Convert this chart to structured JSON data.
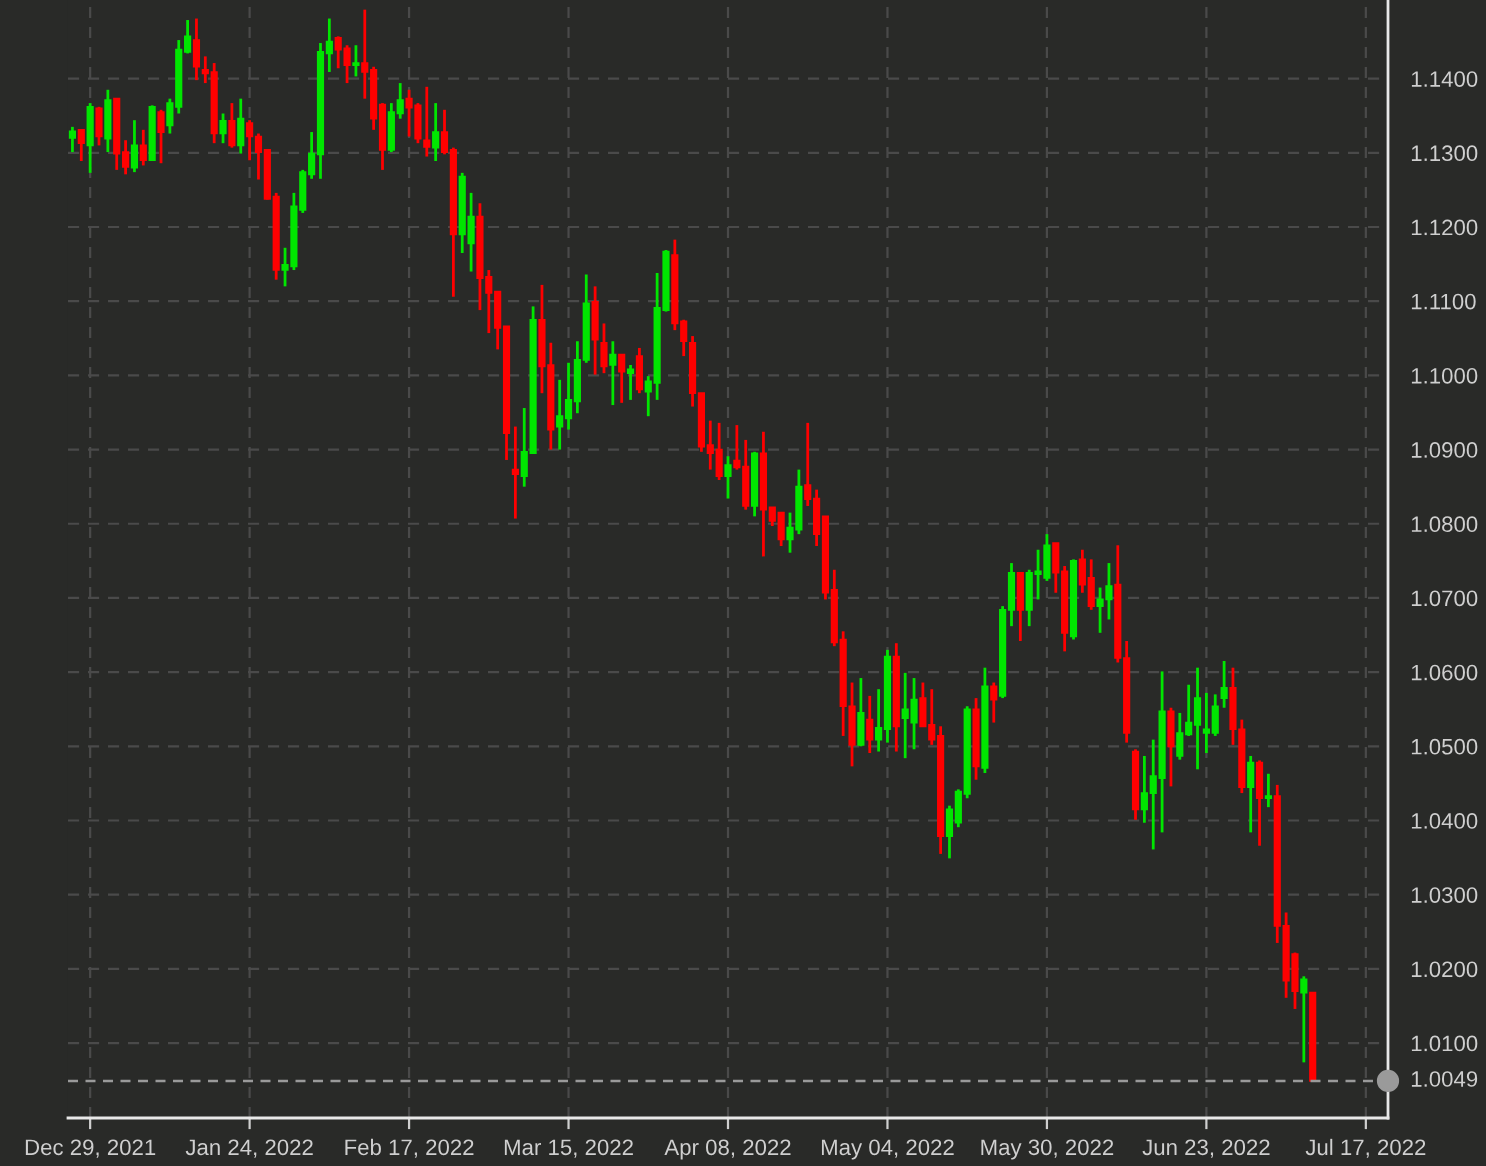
{
  "chart_data": {
    "type": "candlestick",
    "categories": [
      null,
      null,
      "Dec 29, 2021",
      null,
      null,
      null,
      null,
      null,
      null,
      null,
      null,
      null,
      null,
      null,
      null,
      null,
      null,
      null,
      null,
      null,
      "Jan 24, 2022",
      null,
      null,
      null,
      null,
      null,
      null,
      null,
      null,
      null,
      null,
      null,
      null,
      null,
      null,
      null,
      null,
      null,
      "Feb 17, 2022",
      null,
      null,
      null,
      null,
      null,
      null,
      null,
      null,
      null,
      null,
      null,
      null,
      null,
      null,
      null,
      null,
      null,
      "Mar 15, 2022",
      null,
      null,
      null,
      null,
      null,
      null,
      null,
      null,
      null,
      null,
      null,
      null,
      null,
      null,
      null,
      null,
      null,
      "Apr 08, 2022",
      null,
      null,
      null,
      null,
      null,
      null,
      null,
      null,
      null,
      null,
      null,
      null,
      null,
      null,
      null,
      null,
      null,
      "May 04, 2022",
      null,
      null,
      null,
      null,
      null,
      null,
      null,
      null,
      null,
      null,
      null,
      null,
      null,
      null,
      null,
      null,
      null,
      "May 30, 2022",
      null,
      null,
      null,
      null,
      null,
      null,
      null,
      null,
      null,
      null,
      null,
      null,
      null,
      null,
      null,
      null,
      null,
      "Jun 23, 2022",
      null,
      null,
      null,
      null,
      null,
      null,
      null,
      null,
      null,
      null,
      null,
      null,
      null,
      null,
      null,
      null,
      null,
      "Jul 17, 2022"
    ],
    "ohlc": [
      [
        1.132,
        1.1335,
        1.1301,
        1.1329
      ],
      [
        1.1331,
        1.1331,
        1.1289,
        1.1313
      ],
      [
        1.131,
        1.1367,
        1.1273,
        1.1362
      ],
      [
        1.136,
        1.1362,
        1.131,
        1.1322
      ],
      [
        1.1319,
        1.1385,
        1.1301,
        1.1371
      ],
      [
        1.1373,
        1.1373,
        1.1277,
        1.1299
      ],
      [
        1.1301,
        1.1317,
        1.1271,
        1.1281
      ],
      [
        1.128,
        1.1344,
        1.1274,
        1.131
      ],
      [
        1.131,
        1.1331,
        1.1283,
        1.129
      ],
      [
        1.129,
        1.1364,
        1.1289,
        1.1362
      ],
      [
        1.1355,
        1.1358,
        1.1286,
        1.1328
      ],
      [
        1.1337,
        1.1373,
        1.1326,
        1.1367
      ],
      [
        1.1362,
        1.1452,
        1.1353,
        1.1439
      ],
      [
        1.1436,
        1.1479,
        1.1434,
        1.1457
      ],
      [
        1.1452,
        1.1481,
        1.1398,
        1.1416
      ],
      [
        1.1412,
        1.143,
        1.1394,
        1.1407
      ],
      [
        1.1409,
        1.1421,
        1.1313,
        1.1326
      ],
      [
        1.1326,
        1.1353,
        1.1313,
        1.1343
      ],
      [
        1.1343,
        1.1367,
        1.1307,
        1.131
      ],
      [
        1.131,
        1.1373,
        1.1299,
        1.1346
      ],
      [
        1.134,
        1.1344,
        1.129,
        1.1322
      ],
      [
        1.1322,
        1.1326,
        1.1264,
        1.1301
      ],
      [
        1.1304,
        1.1304,
        1.1237,
        1.1238
      ],
      [
        1.1241,
        1.1246,
        1.1129,
        1.1142
      ],
      [
        1.1142,
        1.1172,
        1.112,
        1.1149
      ],
      [
        1.1147,
        1.1246,
        1.1142,
        1.1228
      ],
      [
        1.1223,
        1.1277,
        1.1219,
        1.1274
      ],
      [
        1.1271,
        1.1328,
        1.1265,
        1.1299
      ],
      [
        1.1298,
        1.1448,
        1.1265,
        1.1436
      ],
      [
        1.1434,
        1.1481,
        1.1409,
        1.145
      ],
      [
        1.1455,
        1.1457,
        1.1414,
        1.1439
      ],
      [
        1.1441,
        1.1445,
        1.1394,
        1.1418
      ],
      [
        1.1418,
        1.1445,
        1.1403,
        1.1421
      ],
      [
        1.1421,
        1.1493,
        1.1373,
        1.1409
      ],
      [
        1.1412,
        1.1416,
        1.1331,
        1.1346
      ],
      [
        1.1365,
        1.1367,
        1.1277,
        1.1304
      ],
      [
        1.1304,
        1.1367,
        1.1301,
        1.1355
      ],
      [
        1.1353,
        1.1394,
        1.1346,
        1.1371
      ],
      [
        1.1373,
        1.1385,
        1.1322,
        1.1361
      ],
      [
        1.1364,
        1.1367,
        1.1313,
        1.1319
      ],
      [
        1.1317,
        1.1389,
        1.1295,
        1.1308
      ],
      [
        1.1307,
        1.1367,
        1.1289,
        1.1328
      ],
      [
        1.1328,
        1.1358,
        1.1298,
        1.1301
      ],
      [
        1.1304,
        1.1307,
        1.1106,
        1.119
      ],
      [
        1.119,
        1.1273,
        1.1165,
        1.1268
      ],
      [
        1.1178,
        1.1246,
        1.114,
        1.1214
      ],
      [
        1.1214,
        1.1232,
        1.1088,
        1.1131
      ],
      [
        1.1133,
        1.1142,
        1.1057,
        1.1111
      ],
      [
        1.1113,
        1.1113,
        1.1035,
        1.1064
      ],
      [
        1.1066,
        1.1066,
        1.0886,
        1.0922
      ],
      [
        1.0873,
        1.0931,
        1.0807,
        1.0867
      ],
      [
        1.0864,
        1.0956,
        1.085,
        1.0897
      ],
      [
        1.0895,
        1.1093,
        1.0895,
        1.1075
      ],
      [
        1.1075,
        1.1122,
        1.0976,
        1.1012
      ],
      [
        1.1014,
        1.1044,
        1.09,
        1.0927
      ],
      [
        1.0931,
        1.0994,
        1.09,
        1.0945
      ],
      [
        1.0942,
        1.1017,
        1.0927,
        1.0967
      ],
      [
        1.0965,
        1.1046,
        1.0949,
        1.1021
      ],
      [
        1.1021,
        1.1136,
        1.1017,
        1.1097
      ],
      [
        1.1099,
        1.112,
        1.1001,
        1.1048
      ],
      [
        1.1044,
        1.107,
        1.1003,
        1.1012
      ],
      [
        1.1014,
        1.1046,
        1.096,
        1.1028
      ],
      [
        1.1028,
        1.1028,
        1.0963,
        1.1005
      ],
      [
        1.1003,
        1.1014,
        1.0967,
        1.1008
      ],
      [
        1.1026,
        1.1037,
        1.0976,
        1.0981
      ],
      [
        1.0978,
        1.0999,
        1.0945,
        1.0992
      ],
      [
        1.099,
        1.1138,
        1.0967,
        1.1091
      ],
      [
        1.1088,
        1.1169,
        1.1086,
        1.1167
      ],
      [
        1.1162,
        1.1183,
        1.1061,
        1.107
      ],
      [
        1.1073,
        1.1075,
        1.1026,
        1.1046
      ],
      [
        1.1044,
        1.1053,
        1.0958,
        1.0976
      ],
      [
        1.0976,
        1.0976,
        1.0897,
        1.0904
      ],
      [
        1.0906,
        1.0939,
        1.0873,
        1.0895
      ],
      [
        1.09,
        1.0936,
        1.0859,
        1.0864
      ],
      [
        1.0864,
        1.0891,
        1.0834,
        1.0879
      ],
      [
        1.0885,
        1.0933,
        1.0873,
        1.0876
      ],
      [
        1.0877,
        1.0913,
        1.0819,
        1.0824
      ],
      [
        1.0824,
        1.0897,
        1.081,
        1.0895
      ],
      [
        1.0895,
        1.0924,
        1.0756,
        1.0819
      ],
      [
        1.0822,
        1.0822,
        1.0797,
        1.0804
      ],
      [
        1.0815,
        1.0815,
        1.077,
        1.0779
      ],
      [
        1.0779,
        1.0815,
        1.0761,
        1.0795
      ],
      [
        1.0792,
        1.0873,
        1.0786,
        1.085
      ],
      [
        1.0852,
        1.0936,
        1.0824,
        1.0833
      ],
      [
        1.0834,
        1.0846,
        1.077,
        1.0786
      ],
      [
        1.081,
        1.081,
        1.0698,
        1.0707
      ],
      [
        1.0711,
        1.0738,
        1.0635,
        1.064
      ],
      [
        1.0644,
        1.0655,
        1.0514,
        1.0554
      ],
      [
        1.0554,
        1.0586,
        1.0473,
        1.0502
      ],
      [
        1.0502,
        1.0592,
        1.05,
        1.0545
      ],
      [
        1.0536,
        1.0568,
        1.0491,
        1.0509
      ],
      [
        1.0509,
        1.0577,
        1.0493,
        1.0525
      ],
      [
        1.0523,
        1.063,
        1.0505,
        1.0621
      ],
      [
        1.0621,
        1.0639,
        1.0493,
        1.0527
      ],
      [
        1.0538,
        1.0599,
        1.0484,
        1.055
      ],
      [
        1.0532,
        1.0592,
        1.0496,
        1.0563
      ],
      [
        1.0565,
        1.0586,
        1.0527,
        1.0527
      ],
      [
        1.0529,
        1.0577,
        1.0502,
        1.0509
      ],
      [
        1.0514,
        1.0527,
        1.0355,
        1.0379
      ],
      [
        1.0379,
        1.042,
        1.0349,
        1.0415
      ],
      [
        1.0397,
        1.0442,
        1.0391,
        1.0439
      ],
      [
        1.0436,
        1.0554,
        1.043,
        1.055
      ],
      [
        1.055,
        1.0565,
        1.0455,
        1.0473
      ],
      [
        1.0471,
        1.0606,
        1.0464,
        1.0581
      ],
      [
        1.0581,
        1.0586,
        1.0532,
        1.0563
      ],
      [
        1.0568,
        1.0689,
        1.0565,
        1.0684
      ],
      [
        1.0684,
        1.0747,
        1.0662,
        1.0734
      ],
      [
        1.0734,
        1.0734,
        1.0642,
        1.0684
      ],
      [
        1.0684,
        1.0738,
        1.0662,
        1.0734
      ],
      [
        1.0732,
        1.0765,
        1.0698,
        1.0736
      ],
      [
        1.0727,
        1.0786,
        1.0723,
        1.0771
      ],
      [
        1.0774,
        1.0774,
        1.0707,
        1.0734
      ],
      [
        1.0736,
        1.0743,
        1.0628,
        1.0653
      ],
      [
        1.0648,
        1.0752,
        1.0644,
        1.075
      ],
      [
        1.0752,
        1.0765,
        1.0707,
        1.0718
      ],
      [
        1.0727,
        1.0752,
        1.0684,
        1.0689
      ],
      [
        1.0689,
        1.0714,
        1.0653,
        1.0698
      ],
      [
        1.0698,
        1.0747,
        1.0671,
        1.0716
      ],
      [
        1.0718,
        1.0771,
        1.0613,
        1.0619
      ],
      [
        1.0619,
        1.0642,
        1.0505,
        1.0518
      ],
      [
        1.0493,
        1.0496,
        1.0401,
        1.0415
      ],
      [
        1.0415,
        1.0487,
        1.0397,
        1.0437
      ],
      [
        1.0437,
        1.0509,
        1.0361,
        1.046
      ],
      [
        1.0457,
        1.0601,
        1.0384,
        1.0547
      ],
      [
        1.0547,
        1.0552,
        1.0446,
        1.05
      ],
      [
        1.0487,
        1.0545,
        1.0482,
        1.0518
      ],
      [
        1.0516,
        1.0583,
        1.0514,
        1.0532
      ],
      [
        1.0529,
        1.0606,
        1.0469,
        1.0565
      ],
      [
        1.0518,
        1.0572,
        1.0491,
        1.0523
      ],
      [
        1.0518,
        1.057,
        1.0514,
        1.0554
      ],
      [
        1.0565,
        1.0615,
        1.0552,
        1.0579
      ],
      [
        1.0579,
        1.0606,
        1.0502,
        1.0523
      ],
      [
        1.0523,
        1.0536,
        1.0437,
        1.0445
      ],
      [
        1.0445,
        1.0487,
        1.0384,
        1.0478
      ],
      [
        1.0478,
        1.0481,
        1.0366,
        1.043
      ],
      [
        1.043,
        1.0463,
        1.0418,
        1.0433
      ],
      [
        1.0433,
        1.0448,
        1.0235,
        1.0258
      ],
      [
        1.0258,
        1.0276,
        1.0161,
        1.0184
      ],
      [
        1.022,
        1.0222,
        1.0146,
        1.017
      ],
      [
        1.0168,
        1.019,
        1.0074,
        1.0186
      ],
      [
        1.0168,
        1.0168,
        1.0049,
        1.0049
      ],
      null,
      null,
      null,
      null,
      null,
      null
    ],
    "colors": [
      "#00e600",
      "#ff0000",
      "#00e600",
      "#ff0000",
      "#00e600",
      "#ff0000",
      "#ff0000",
      "#00e600",
      "#ff0000",
      "#00e600",
      "#ff0000",
      "#00e600",
      "#00e600",
      "#00e600",
      "#ff0000",
      "#ff0000",
      "#ff0000",
      "#00e600",
      "#ff0000",
      "#00e600",
      "#ff0000",
      "#ff0000",
      "#ff0000",
      "#ff0000",
      "#00e600",
      "#00e600",
      "#00e600",
      "#00e600",
      "#00e600",
      "#00e600",
      "#ff0000",
      "#ff0000",
      "#00e600",
      "#ff0000",
      "#ff0000",
      "#ff0000",
      "#00e600",
      "#00e600",
      "#ff0000",
      "#ff0000",
      "#ff0000",
      "#00e600",
      "#ff0000",
      "#ff0000",
      "#00e600",
      "#00e600",
      "#ff0000",
      "#ff0000",
      "#ff0000",
      "#ff0000",
      "#ff0000",
      "#00e600",
      "#00e600",
      "#ff0000",
      "#ff0000",
      "#00e600",
      "#00e600",
      "#00e600",
      "#00e600",
      "#ff0000",
      "#ff0000",
      "#00e600",
      "#ff0000",
      "#00e600",
      "#ff0000",
      "#00e600",
      "#00e600",
      "#00e600",
      "#ff0000",
      "#ff0000",
      "#ff0000",
      "#ff0000",
      "#ff0000",
      "#ff0000",
      "#00e600",
      "#ff0000",
      "#ff0000",
      "#00e600",
      "#ff0000",
      "#ff0000",
      "#ff0000",
      "#00e600",
      "#00e600",
      "#ff0000",
      "#ff0000",
      "#ff0000",
      "#ff0000",
      "#ff0000",
      "#ff0000",
      "#00e600",
      "#ff0000",
      "#00e600",
      "#00e600",
      "#ff0000",
      "#00e600",
      "#00e600",
      "#ff0000",
      "#ff0000",
      "#ff0000",
      "#00e600",
      "#00e600",
      "#00e600",
      "#ff0000",
      "#00e600",
      "#ff0000",
      "#00e600",
      "#00e600",
      "#ff0000",
      "#00e600",
      "#00e600",
      "#00e600",
      "#ff0000",
      "#ff0000",
      "#00e600",
      "#ff0000",
      "#ff0000",
      "#00e600",
      "#00e600",
      "#ff0000",
      "#ff0000",
      "#ff0000",
      "#00e600",
      "#00e600",
      "#00e600",
      "#ff0000",
      "#00e600",
      "#00e600",
      "#00e600",
      "#00e600",
      "#00e600",
      "#00e600",
      "#ff0000",
      "#ff0000",
      "#00e600",
      "#ff0000",
      "#00e600",
      "#ff0000",
      "#ff0000",
      "#ff0000",
      "#00e600",
      "#ff0000",
      null,
      null,
      null,
      null,
      null,
      null
    ],
    "ylim": [
      0.9999,
      1.1506
    ],
    "yticks": [
      {
        "value": 1.01,
        "label": "1.0100"
      },
      {
        "value": 1.02,
        "label": "1.0200"
      },
      {
        "value": 1.03,
        "label": "1.0300"
      },
      {
        "value": 1.04,
        "label": "1.0400"
      },
      {
        "value": 1.05,
        "label": "1.0500"
      },
      {
        "value": 1.06,
        "label": "1.0600"
      },
      {
        "value": 1.07,
        "label": "1.0700"
      },
      {
        "value": 1.08,
        "label": "1.0800"
      },
      {
        "value": 1.09,
        "label": "1.0900"
      },
      {
        "value": 1.1,
        "label": "1.1000"
      },
      {
        "value": 1.11,
        "label": "1.1100"
      },
      {
        "value": 1.12,
        "label": "1.1200"
      },
      {
        "value": 1.13,
        "label": "1.1300"
      },
      {
        "value": 1.14,
        "label": "1.1400"
      }
    ],
    "ref_lines": [
      {
        "axis": "y",
        "value": 1.0049,
        "label": "1.0049",
        "color": "#9a9a9a",
        "line_style": "dashed"
      }
    ],
    "grid": true
  }
}
